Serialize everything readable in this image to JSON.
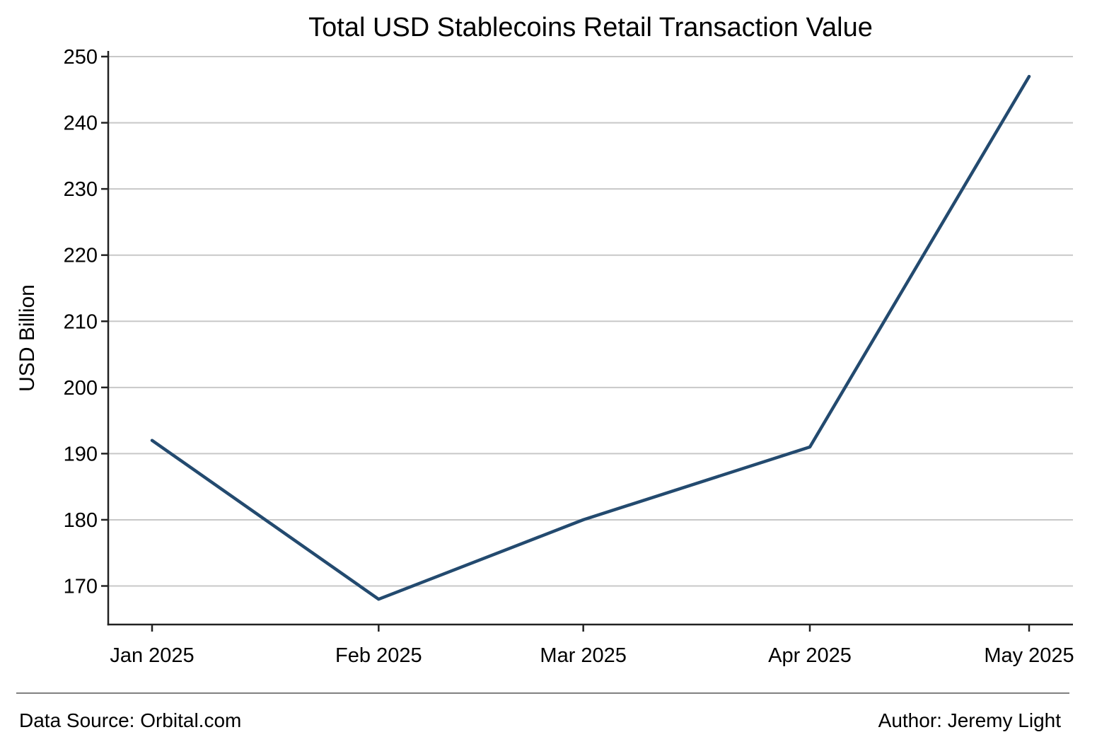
{
  "chart_data": {
    "type": "line",
    "title": "Total USD Stablecoins Retail Transaction Value",
    "xlabel": "",
    "ylabel": "USD Billion",
    "categories": [
      "Jan 2025",
      "Feb 2025",
      "Mar 2025",
      "Apr 2025",
      "May 2025"
    ],
    "x_dates": [
      "2025-01-01",
      "2025-02-01",
      "2025-03-01",
      "2025-04-01",
      "2025-05-01"
    ],
    "series": [
      {
        "values": [
          192,
          168,
          180,
          191,
          247
        ],
        "color": "#234a6f"
      }
    ],
    "yticks": [
      170,
      180,
      190,
      200,
      210,
      220,
      230,
      240,
      250
    ],
    "ylim": [
      164,
      251
    ],
    "grid": "horizontal",
    "legend": "none"
  },
  "footer": {
    "source": "Data Source: Orbital.com",
    "author": "Author: Jeremy Light"
  }
}
